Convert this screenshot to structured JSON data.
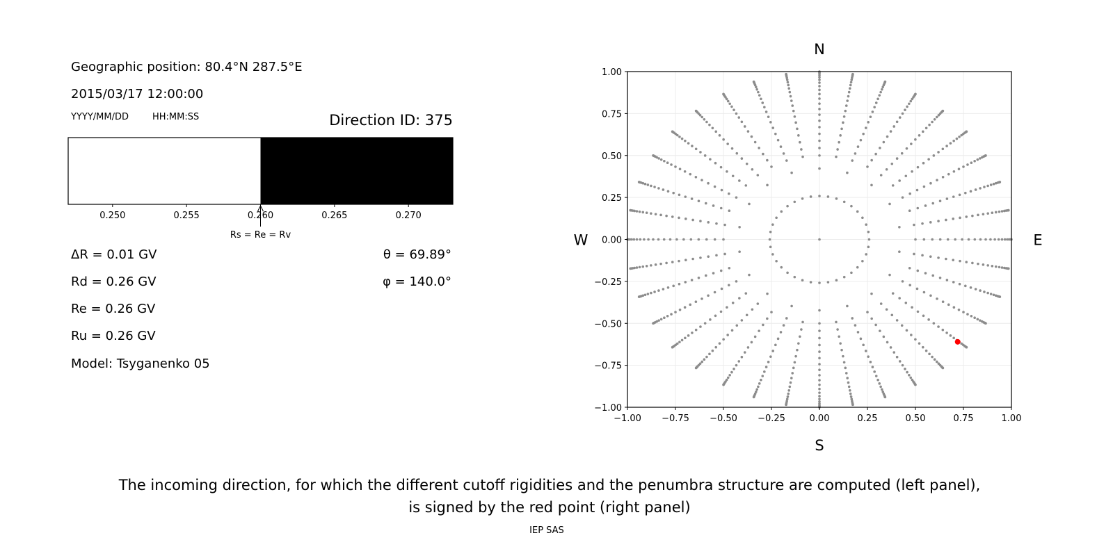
{
  "left_panel": {
    "geo_position": "Geographic position: 80.4°N 287.5°E",
    "datetime": "2015/03/17 12:00:00",
    "date_format": "YYYY/MM/DD",
    "time_format": "HH:MM:SS",
    "direction_id": "Direction ID: 375",
    "delta_r": "ΔR = 0.01 GV",
    "rd": "Rd = 0.26 GV",
    "re": "Re = 0.26 GV",
    "ru": "Ru = 0.26 GV",
    "model": "Model: Tsyganenko 05",
    "theta": "θ = 69.89°",
    "phi": "φ = 140.0°",
    "cutoff_annotation": "Rs = Re = Rv"
  },
  "caption_line1": "The incoming direction, for which the different cutoff rigidities and the penumbra structure are computed (left panel),",
  "caption_line2": "is signed by the red point (right panel)",
  "footer": "IEP SAS",
  "colors": {
    "allowed": "#ffffff",
    "forbidden": "#000000",
    "grid_points": "#8c8c8c",
    "highlight": "#ff0000"
  },
  "chart_data": [
    {
      "type": "bar",
      "description_of_fill": "penumbra band: allowed (white) below cutoff, forbidden (black) above",
      "xlim": [
        0.247,
        0.273
      ],
      "ticks": [
        "0.250",
        "0.255",
        "0.260",
        "0.265",
        "0.270"
      ],
      "tick_values": [
        0.25,
        0.255,
        0.26,
        0.265,
        0.27
      ],
      "cutoff": 0.26,
      "segments": [
        {
          "from": 0.247,
          "to": 0.26,
          "color": "#ffffff"
        },
        {
          "from": 0.26,
          "to": 0.273,
          "color": "#000000"
        }
      ]
    },
    {
      "type": "scatter",
      "xlim": [
        -1,
        1
      ],
      "ylim": [
        -1,
        1
      ],
      "grid": true,
      "ticks": [
        "−1.00",
        "−0.75",
        "−0.50",
        "−0.25",
        "0.00",
        "0.25",
        "0.50",
        "0.75",
        "1.00"
      ],
      "tick_values": [
        -1,
        -0.75,
        -0.5,
        -0.25,
        0,
        0.25,
        0.5,
        0.75,
        1
      ],
      "compass": {
        "n": "N",
        "s": "S",
        "e": "E",
        "w": "W"
      },
      "direction_grid": {
        "center": true,
        "rings": [
          {
            "zenith_deg": 15,
            "azimuth_step_deg": 10
          },
          {
            "zenith_deg": 25,
            "azimuth_step_deg": 20
          }
        ],
        "spokes": {
          "azimuth_step_deg": 10,
          "zenith_from_deg": 30,
          "zenith_to_deg": 90,
          "zenith_step_deg": 3
        }
      },
      "highlight_point": {
        "x": 0.72,
        "y": -0.61
      }
    }
  ]
}
